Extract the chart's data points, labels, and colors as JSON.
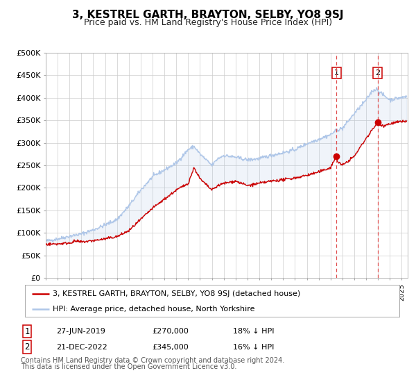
{
  "title": "3, KESTREL GARTH, BRAYTON, SELBY, YO8 9SJ",
  "subtitle": "Price paid vs. HM Land Registry's House Price Index (HPI)",
  "ylim": [
    0,
    500000
  ],
  "yticks": [
    0,
    50000,
    100000,
    150000,
    200000,
    250000,
    300000,
    350000,
    400000,
    450000,
    500000
  ],
  "ytick_labels": [
    "£0",
    "£50K",
    "£100K",
    "£150K",
    "£200K",
    "£250K",
    "£300K",
    "£350K",
    "£400K",
    "£450K",
    "£500K"
  ],
  "xlim_start": 1995.0,
  "xlim_end": 2025.5,
  "hpi_color": "#aec6e8",
  "price_color": "#cc0000",
  "transaction1_date": 2019.49,
  "transaction1_price": 270000,
  "transaction2_date": 2022.97,
  "transaction2_price": 345000,
  "vline_color": "#e05050",
  "marker_color": "#cc0000",
  "bg_color": "#ffffff",
  "plot_bg_color": "#ffffff",
  "grid_color": "#cccccc",
  "legend_label_red": "3, KESTREL GARTH, BRAYTON, SELBY, YO8 9SJ (detached house)",
  "legend_label_blue": "HPI: Average price, detached house, North Yorkshire",
  "table_rows": [
    {
      "num": "1",
      "date": "27-JUN-2019",
      "price": "£270,000",
      "note": "18% ↓ HPI"
    },
    {
      "num": "2",
      "date": "21-DEC-2022",
      "price": "£345,000",
      "note": "16% ↓ HPI"
    }
  ],
  "footnote1": "Contains HM Land Registry data © Crown copyright and database right 2024.",
  "footnote2": "This data is licensed under the Open Government Licence v3.0.",
  "title_fontsize": 11,
  "subtitle_fontsize": 9,
  "tick_fontsize": 8,
  "legend_fontsize": 8,
  "table_fontsize": 8,
  "footnote_fontsize": 7
}
